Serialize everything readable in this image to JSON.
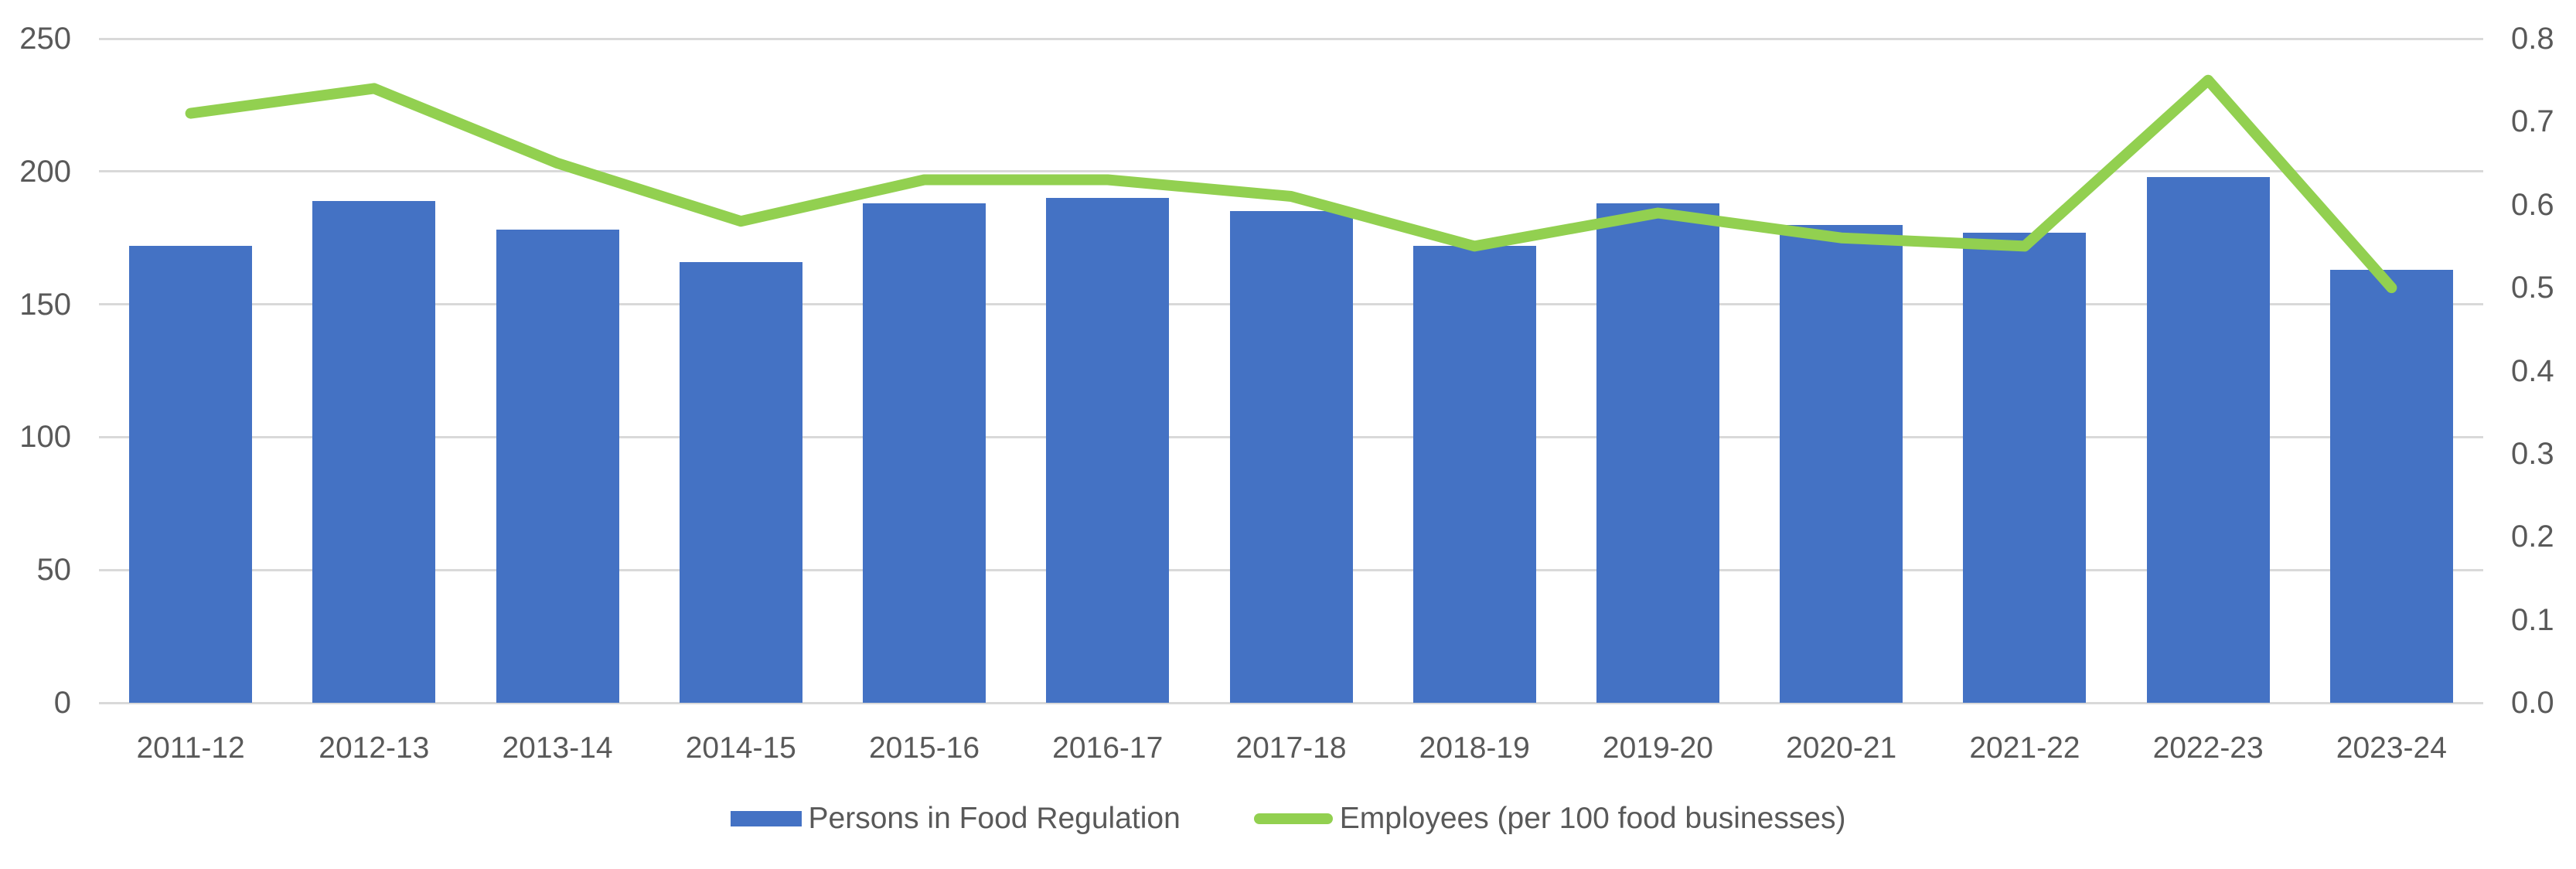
{
  "chart_data": {
    "type": "combo-bar-line",
    "title": "",
    "categories": [
      "2011-12",
      "2012-13",
      "2013-14",
      "2014-15",
      "2015-16",
      "2016-17",
      "2017-18",
      "2018-19",
      "2019-20",
      "2020-21",
      "2021-22",
      "2022-23",
      "2023-24"
    ],
    "series": [
      {
        "name": "Persons in Food Regulation",
        "type": "bar",
        "axis": "left",
        "color": "#4472C4",
        "values": [
          172,
          189,
          178,
          166,
          188,
          190,
          185,
          172,
          188,
          180,
          177,
          198,
          163
        ]
      },
      {
        "name": "Employees (per 100 food businesses)",
        "type": "line",
        "axis": "right",
        "color": "#92D050",
        "values": [
          0.71,
          0.74,
          0.65,
          0.58,
          0.63,
          0.63,
          0.61,
          0.55,
          0.59,
          0.56,
          0.55,
          0.75,
          0.5
        ]
      }
    ],
    "left_axis": {
      "min": 0,
      "max": 250,
      "step": 50,
      "labels": [
        "250",
        "200",
        "150",
        "100",
        "50",
        "0"
      ]
    },
    "right_axis": {
      "min": 0.0,
      "max": 0.8,
      "step": 0.1,
      "labels": [
        "0.8",
        "0.7",
        "0.6",
        "0.5",
        "0.4",
        "0.3",
        "0.2",
        "0.1",
        "0.0"
      ]
    },
    "grid": true,
    "legend_position": "bottom",
    "colors": {
      "axis_text": "#595959",
      "gridline": "#D9D9D9",
      "background": "#FFFFFF"
    }
  }
}
